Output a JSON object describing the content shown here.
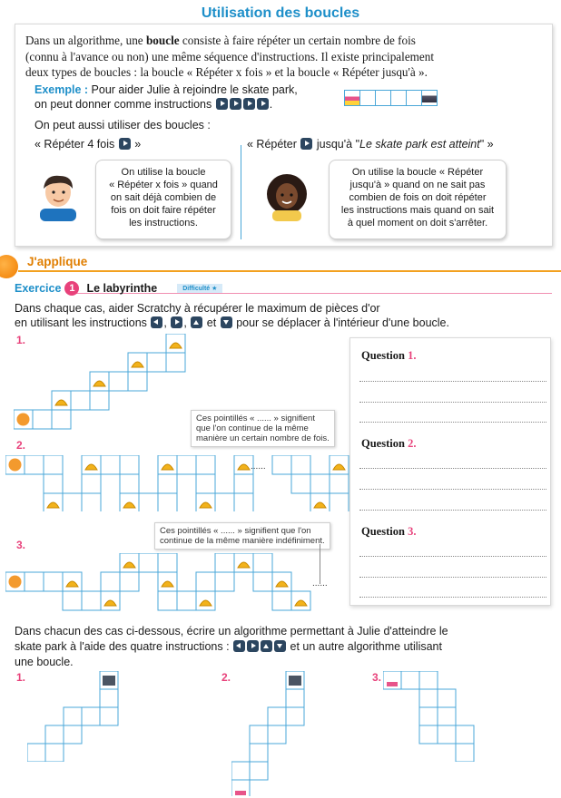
{
  "title": "Utilisation des boucles",
  "intro": {
    "p1_a": "Dans un algorithme, une ",
    "p1_b": "boucle",
    "p1_c": " consiste à faire répéter un certain nombre de fois",
    "p2": "(connu à l'avance ou non) une même séquence d'instructions. Il existe principalement",
    "p3": "deux types de boucles : la boucle « Répéter x fois » et la boucle « Répéter jusqu'à ».",
    "example_label": "Exemple :",
    "example_l1": "Pour aider Julie à rejoindre le skate park,",
    "example_l2": "on peut donner comme instructions",
    "also": "On peut aussi utiliser des boucles :",
    "loop1_a": "« Répéter 4 fois",
    "loop1_b": "»",
    "loop2_a": "« Répéter",
    "loop2_b": "jusqu'à \"",
    "loop2_c": "Le skate park est atteint",
    "loop2_d": "\" »",
    "bubble_left": [
      "On utilise la boucle",
      "« Répéter x fois » quand",
      "on sait déjà combien de",
      "fois on doit faire répéter",
      "les instructions."
    ],
    "bubble_right": [
      "On utilise la boucle « Répéter",
      "jusqu'à » quand on ne sait pas",
      "combien de fois on doit répéter",
      "les instructions mais quand on sait",
      "à quel moment on doit s'arrêter."
    ]
  },
  "japplique": "J'applique",
  "exercise": {
    "label": "Exercice",
    "number": "1",
    "title": "Le labyrinthe",
    "difficulty": "Difficulté ★",
    "text1": "Dans chaque cas, aider Scratchy à récupérer le maximum de pièces d'or",
    "text2_a": "en utilisant les instructions",
    "text2_b": "et",
    "text2_c": "pour se déplacer à l'intérieur d'une boucle.",
    "case_labels": [
      "1.",
      "2.",
      "3."
    ],
    "note1": [
      "Ces pointillés « ...... » signifient",
      "que l'on continue de la même",
      "manière un certain nombre de fois."
    ],
    "note2": [
      "Ces pointillés « ...... » signifient que l'on",
      "continue de la même manière indéfiniment."
    ],
    "questions": [
      {
        "label": "Question",
        "num": "1."
      },
      {
        "label": "Question",
        "num": "2."
      },
      {
        "label": "Question",
        "num": "3."
      }
    ],
    "dots_ellipsis": "......"
  },
  "part2": {
    "text1": "Dans chacun des cas ci-dessous, écrire un algorithme permettant à Julie d'atteindre le",
    "text2_a": "skate park à l'aide des quatre instructions :",
    "text2_b": "et un autre algorithme utilisant",
    "text3": "une boucle.",
    "labels": [
      "1.",
      "2.",
      "3."
    ]
  },
  "colors": {
    "title_blue": "#1e8fc9",
    "pink": "#e8427b",
    "orange": "#f07c00",
    "grid": "#4aa7d8",
    "button": "#2c4660"
  }
}
